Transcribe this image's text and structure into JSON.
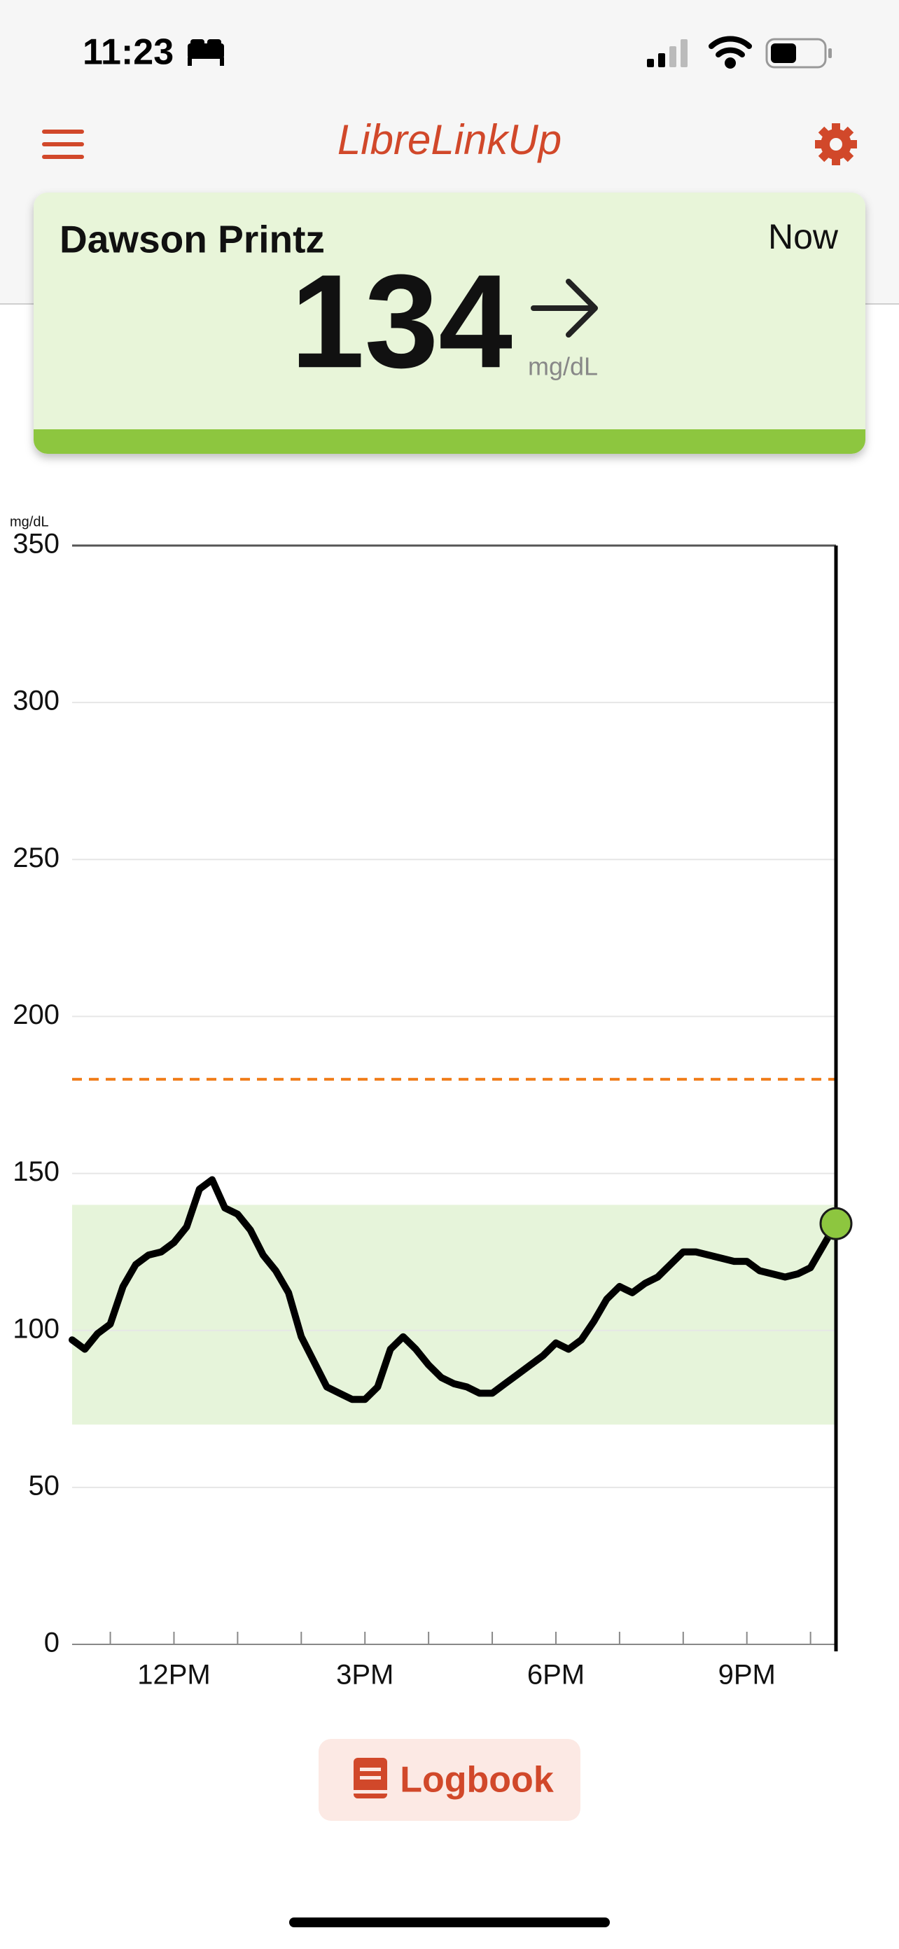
{
  "status_bar": {
    "time": "11:23"
  },
  "header": {
    "title": "LibreLinkUp"
  },
  "card": {
    "name": "Dawson Printz",
    "time": "Now",
    "value": 134,
    "unit": "mg/dL"
  },
  "chart_data": {
    "type": "line",
    "y_label": "mg/dL",
    "x": [
      10.4,
      10.6,
      10.8,
      11.0,
      11.2,
      11.4,
      11.6,
      11.8,
      12.0,
      12.2,
      12.4,
      12.6,
      12.8,
      13.0,
      13.2,
      13.4,
      13.6,
      13.8,
      14.0,
      14.2,
      14.4,
      14.6,
      14.8,
      15.0,
      15.2,
      15.4,
      15.6,
      15.8,
      16.0,
      16.2,
      16.4,
      16.6,
      16.8,
      17.0,
      17.2,
      17.4,
      17.6,
      17.8,
      18.0,
      18.2,
      18.4,
      18.6,
      18.8,
      19.0,
      19.2,
      19.4,
      19.6,
      19.8,
      20.0,
      20.2,
      20.4,
      20.6,
      20.8,
      21.0,
      21.2,
      21.4,
      21.6,
      21.8,
      22.0,
      22.2,
      22.4
    ],
    "series": [
      {
        "color": "#000000",
        "values": [
          97,
          94,
          99,
          102,
          114,
          121,
          124,
          125,
          128,
          133,
          145,
          148,
          139,
          137,
          132,
          124,
          119,
          112,
          98,
          90,
          82,
          80,
          78,
          78,
          82,
          94,
          98,
          94,
          89,
          85,
          83,
          82,
          80,
          80,
          83,
          86,
          89,
          92,
          96,
          94,
          97,
          103,
          110,
          114,
          112,
          115,
          117,
          121,
          125,
          125,
          124,
          123,
          122,
          122,
          119,
          118,
          117,
          118,
          120,
          127,
          134
        ]
      }
    ],
    "xlim": [
      10.4,
      22.4
    ],
    "ylim": [
      0,
      350
    ],
    "yticks": [
      0,
      50,
      100,
      150,
      200,
      250,
      300,
      350
    ],
    "xticks": [
      {
        "value": 12,
        "label": "12PM"
      },
      {
        "value": 15,
        "label": "3PM"
      },
      {
        "value": 18,
        "label": "6PM"
      },
      {
        "value": 21,
        "label": "9PM"
      }
    ],
    "x_minor_ticks": [
      11,
      13,
      14,
      16,
      17,
      19,
      20,
      22
    ],
    "target_range": [
      70,
      140
    ],
    "target_color": "#e6f4da",
    "high_threshold": 180,
    "threshold_color": "#f07d1a",
    "current_color": "#8dc63f",
    "grid": true
  },
  "button": {
    "label": "Logbook"
  }
}
